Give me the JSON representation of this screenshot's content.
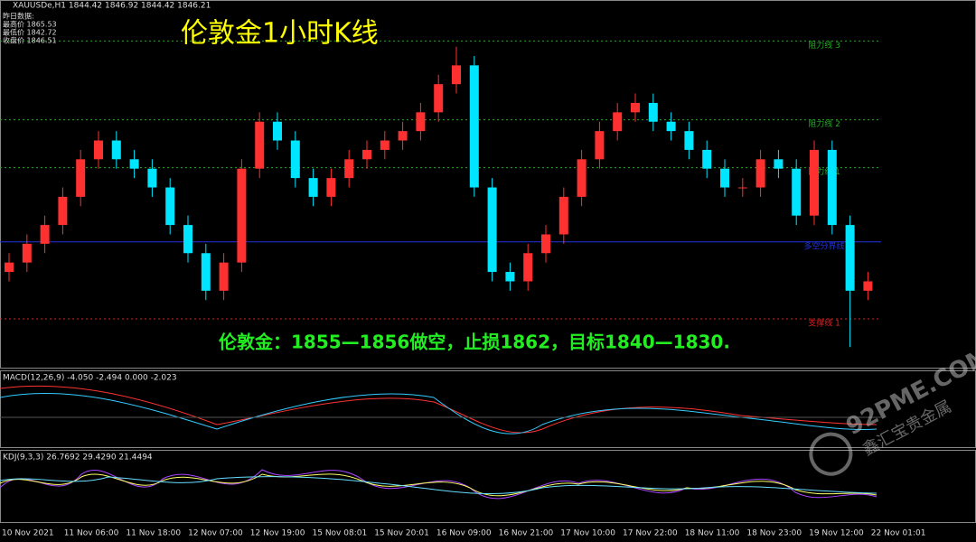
{
  "header": "XAUUSDe,H1  1844.42 1846.92 1844.42 1846.21",
  "info": [
    "昨日数据:",
    "最高价 1865.53",
    "最低价 1842.72",
    "收盘价 1846.51"
  ],
  "title": "伦敦金1小时K线",
  "strategy": "伦敦金：1855—1856做空，止损1862，目标1840—1830.",
  "chart_data": {
    "type": "candlestick",
    "ylim": [
      1834,
      1872
    ],
    "up_color": "#ff3030",
    "down_color": "#00e5ff",
    "open": [
      1844,
      1845,
      1847,
      1849,
      1852,
      1856,
      1858,
      1856,
      1855,
      1853,
      1849,
      1846,
      1842,
      1845,
      1855,
      1860,
      1858,
      1854,
      1852,
      1854,
      1856,
      1857,
      1858,
      1859,
      1861,
      1864,
      1866,
      1853,
      1844,
      1843,
      1846,
      1848,
      1852,
      1856,
      1859,
      1861,
      1862,
      1860,
      1859,
      1857,
      1855,
      1853,
      1853,
      1856,
      1855,
      1850,
      1857,
      1849,
      1842
    ],
    "high": [
      1846,
      1848,
      1850,
      1853,
      1857,
      1859,
      1859,
      1857,
      1856,
      1854,
      1850,
      1847,
      1846,
      1856,
      1861,
      1861,
      1859,
      1855,
      1855,
      1857,
      1858,
      1859,
      1860,
      1862,
      1865,
      1868,
      1867,
      1854,
      1845,
      1847,
      1849,
      1853,
      1857,
      1860,
      1862,
      1863,
      1863,
      1861,
      1860,
      1858,
      1856,
      1854,
      1857,
      1857,
      1856,
      1858,
      1858,
      1850,
      1844
    ],
    "low": [
      1843,
      1844,
      1846,
      1848,
      1851,
      1855,
      1855,
      1854,
      1852,
      1848,
      1845,
      1841,
      1841,
      1844,
      1854,
      1857,
      1853,
      1851,
      1851,
      1853,
      1855,
      1856,
      1857,
      1858,
      1860,
      1863,
      1852,
      1843,
      1842,
      1842,
      1845,
      1847,
      1851,
      1855,
      1858,
      1860,
      1859,
      1858,
      1856,
      1854,
      1852,
      1852,
      1852,
      1854,
      1849,
      1849,
      1848,
      1836,
      1841
    ],
    "close": [
      1845,
      1847,
      1849,
      1852,
      1856,
      1858,
      1856,
      1855,
      1853,
      1849,
      1846,
      1842,
      1845,
      1855,
      1860,
      1858,
      1854,
      1852,
      1854,
      1856,
      1857,
      1858,
      1859,
      1861,
      1864,
      1866,
      1853,
      1844,
      1843,
      1846,
      1848,
      1852,
      1856,
      1859,
      1861,
      1862,
      1860,
      1859,
      1857,
      1855,
      1853,
      1853,
      1856,
      1855,
      1850,
      1857,
      1849,
      1842,
      1843
    ],
    "levels": [
      {
        "label": "阻力线 3",
        "value": 1868.6,
        "color": "#22aa22"
      },
      {
        "label": "阻力线 2",
        "value": 1860.2,
        "color": "#22aa22"
      },
      {
        "label": "阻力线 1",
        "value": 1855.1,
        "color": "#22aa22"
      },
      {
        "label": "多空分界线",
        "value": 1847.2,
        "color": "#2233dd"
      },
      {
        "label": "支撑线 1",
        "value": 1839.0,
        "color": "#dd2222"
      }
    ]
  },
  "macd_label": "MACD(12,26,9) -4.050 -2.494 0.000 -2.023",
  "kdj_label": "KDJ(9,3,3) 26.7692 29.4290 21.4494",
  "time_labels": [
    "10 Nov 2021",
    "11 Nov 06:00",
    "11 Nov 18:00",
    "12 Nov 07:00",
    "12 Nov 19:00",
    "15 Nov 08:01",
    "15 Nov 20:01",
    "16 Nov 09:00",
    "16 Nov 21:00",
    "17 Nov 10:00",
    "17 Nov 22:00",
    "18 Nov 11:00",
    "18 Nov 23:00",
    "19 Nov 12:00",
    "22 Nov 01:01"
  ],
  "watermark": [
    "92PME.COM",
    "鑫汇宝贵金属"
  ]
}
